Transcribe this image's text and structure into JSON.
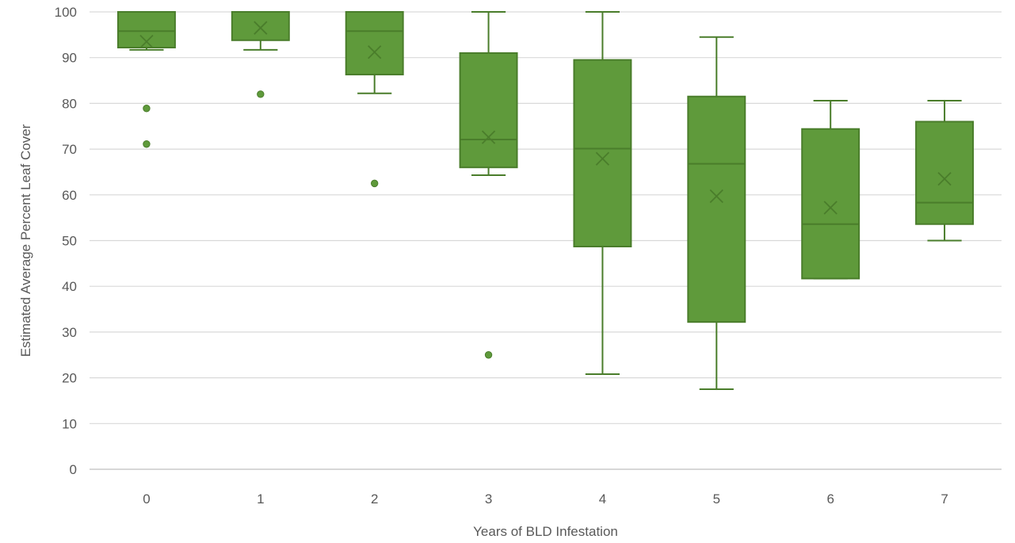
{
  "chart_data": {
    "type": "box",
    "title": "",
    "xlabel": "Years of BLD Infestation",
    "ylabel": "Estimated Average Percent Leaf Cover",
    "ylim": [
      0,
      100
    ],
    "yticks": [
      0,
      10,
      20,
      30,
      40,
      50,
      60,
      70,
      80,
      90,
      100
    ],
    "grid": true,
    "categories": [
      "0",
      "1",
      "2",
      "3",
      "4",
      "5",
      "6",
      "7"
    ],
    "boxes": [
      {
        "category": "0",
        "min": 91.7,
        "q1": 92.2,
        "median": 95.8,
        "q3": 100,
        "max": 100,
        "mean": 93.5,
        "outliers": [
          78.9,
          71.1
        ]
      },
      {
        "category": "1",
        "min": 91.7,
        "q1": 93.8,
        "median": 100,
        "q3": 100,
        "max": 100,
        "mean": 96.5,
        "outliers": [
          82.0
        ]
      },
      {
        "category": "2",
        "min": 82.2,
        "q1": 86.3,
        "median": 95.8,
        "q3": 100,
        "max": 100,
        "mean": 91.2,
        "outliers": [
          62.5
        ]
      },
      {
        "category": "3",
        "min": 64.3,
        "q1": 66.0,
        "median": 72.1,
        "q3": 91.0,
        "max": 100,
        "mean": 72.6,
        "outliers": [
          25.0
        ]
      },
      {
        "category": "4",
        "min": 20.8,
        "q1": 48.7,
        "median": 70.1,
        "q3": 89.5,
        "max": 100,
        "mean": 67.9,
        "outliers": []
      },
      {
        "category": "5",
        "min": 17.5,
        "q1": 32.2,
        "median": 66.8,
        "q3": 81.5,
        "max": 94.5,
        "mean": 59.7,
        "outliers": []
      },
      {
        "category": "6",
        "min": 41.7,
        "q1": 41.7,
        "median": 53.6,
        "q3": 74.4,
        "max": 80.6,
        "mean": 57.2,
        "outliers": []
      },
      {
        "category": "7",
        "min": 50.0,
        "q1": 53.6,
        "median": 58.3,
        "q3": 76.0,
        "max": 80.6,
        "mean": 63.5,
        "outliers": []
      }
    ],
    "colors": {
      "box_fill": "#5f9a3b",
      "box_edge": "#4a7d2b",
      "outlier": "#5f9a3b",
      "grid": "#d9d9d9",
      "text": "#595959"
    }
  }
}
